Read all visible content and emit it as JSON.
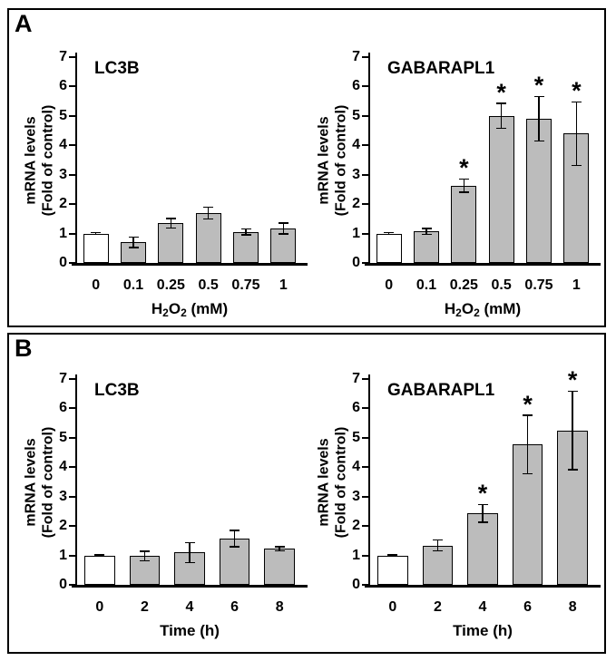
{
  "panels": [
    {
      "label": "A"
    },
    {
      "label": "B"
    }
  ],
  "colors": {
    "background": "#ffffff",
    "panel_border": "#000000",
    "axis": "#000000",
    "text": "#000000",
    "bar_fill": "#bcbcbc",
    "control_bar_fill": "#ffffff",
    "bar_stroke": "#000000",
    "error_bar": "#000000"
  },
  "chart_data": [
    {
      "type": "bar",
      "panel": "A",
      "side": "left",
      "title": "LC3B",
      "ylabel_lines": [
        "mRNA levels",
        "(Fold of control)"
      ],
      "xlabel_segments": [
        {
          "text": "H"
        },
        {
          "text": "2",
          "sub": true
        },
        {
          "text": "O"
        },
        {
          "text": "2",
          "sub": true
        },
        {
          "text": " (mM)"
        }
      ],
      "categories": [
        "0",
        "0.1",
        "0.25",
        "0.5",
        "0.75",
        "1"
      ],
      "values": [
        1.0,
        0.7,
        1.35,
        1.7,
        1.05,
        1.17
      ],
      "errors": [
        0.03,
        0.18,
        0.16,
        0.2,
        0.1,
        0.19
      ],
      "significant": [
        false,
        false,
        false,
        false,
        false,
        false
      ],
      "control_index": 0,
      "ylim": [
        0,
        7
      ],
      "yticks": [
        0,
        1,
        2,
        3,
        4,
        5,
        6,
        7
      ],
      "grid": false,
      "legend": null
    },
    {
      "type": "bar",
      "panel": "A",
      "side": "right",
      "title": "GABARAPL1",
      "ylabel_lines": [
        "mRNA levels",
        "(Fold of control)"
      ],
      "xlabel_segments": [
        {
          "text": "H"
        },
        {
          "text": "2",
          "sub": true
        },
        {
          "text": "O"
        },
        {
          "text": "2",
          "sub": true
        },
        {
          "text": " (mM)"
        }
      ],
      "categories": [
        "0",
        "0.1",
        "0.25",
        "0.5",
        "0.75",
        "1"
      ],
      "values": [
        1.0,
        1.07,
        2.63,
        5.0,
        4.9,
        4.4
      ],
      "errors": [
        0.03,
        0.1,
        0.23,
        0.42,
        0.76,
        1.08
      ],
      "significant": [
        false,
        false,
        true,
        true,
        true,
        true
      ],
      "control_index": 0,
      "ylim": [
        0,
        7
      ],
      "yticks": [
        0,
        1,
        2,
        3,
        4,
        5,
        6,
        7
      ],
      "grid": false,
      "legend": null
    },
    {
      "type": "bar",
      "panel": "B",
      "side": "left",
      "title": "LC3B",
      "ylabel_lines": [
        "mRNA levels",
        "(Fold of control)"
      ],
      "xlabel_segments": [
        {
          "text": "Time (h)"
        }
      ],
      "categories": [
        "0",
        "2",
        "4",
        "6",
        "8"
      ],
      "values": [
        1.0,
        0.98,
        1.1,
        1.57,
        1.22
      ],
      "errors": [
        0.02,
        0.16,
        0.34,
        0.28,
        0.07
      ],
      "significant": [
        false,
        false,
        false,
        false,
        false
      ],
      "control_index": 0,
      "ylim": [
        0,
        7
      ],
      "yticks": [
        0,
        1,
        2,
        3,
        4,
        5,
        6,
        7
      ],
      "grid": false,
      "legend": null
    },
    {
      "type": "bar",
      "panel": "B",
      "side": "right",
      "title": "GABARAPL1",
      "ylabel_lines": [
        "mRNA levels",
        "(Fold of control)"
      ],
      "xlabel_segments": [
        {
          "text": "Time (h)"
        }
      ],
      "categories": [
        "0",
        "2",
        "4",
        "6",
        "8"
      ],
      "values": [
        1.0,
        1.34,
        2.43,
        4.77,
        5.25
      ],
      "errors": [
        0.02,
        0.18,
        0.3,
        1.0,
        1.34
      ],
      "significant": [
        false,
        false,
        true,
        true,
        true
      ],
      "control_index": 0,
      "ylim": [
        0,
        7
      ],
      "yticks": [
        0,
        1,
        2,
        3,
        4,
        5,
        6,
        7
      ],
      "grid": false,
      "legend": null
    }
  ]
}
